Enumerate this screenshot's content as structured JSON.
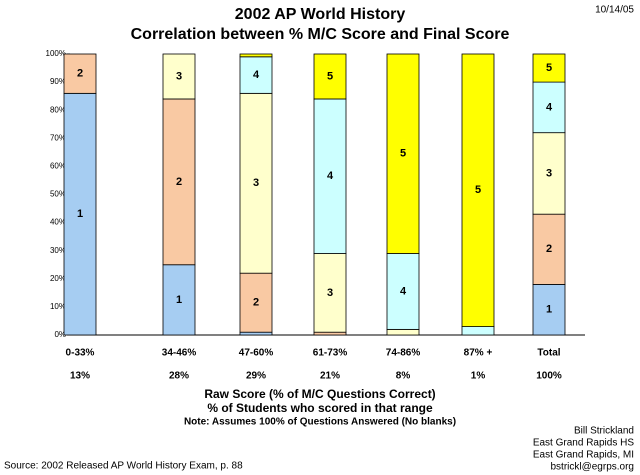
{
  "chart_data": {
    "type": "stacked_bar",
    "title": "2002 AP World History",
    "subtitle": "Correlation between % M/C Score and Final Score",
    "date": "10/14/05",
    "categories": [
      "0-33%",
      "34-46%",
      "47-60%",
      "61-73%",
      "74-86%",
      "87% +",
      "Total"
    ],
    "category_sublabels": [
      "13%",
      "28%",
      "29%",
      "21%",
      "8%",
      "1%",
      "100%"
    ],
    "x_label": "Raw Score (% of M/C Questions Correct)",
    "x_label_2": "% of Students who scored in that range",
    "note": "Note: Assumes 100% of Questions Answered (No blanks)",
    "series": [
      {
        "name": "1",
        "color": "#a6cdf2",
        "values": [
          86,
          25,
          1,
          0,
          0,
          0,
          18
        ]
      },
      {
        "name": "2",
        "color": "#f9c9a3",
        "values": [
          14,
          59,
          21,
          1,
          0,
          0,
          25
        ]
      },
      {
        "name": "3",
        "color": "#ffffcc",
        "values": [
          0,
          16,
          64,
          28,
          2,
          0,
          29
        ]
      },
      {
        "name": "4",
        "color": "#ccffff",
        "values": [
          0,
          0,
          13,
          55,
          27,
          3,
          18
        ]
      },
      {
        "name": "5",
        "color": "#ffff00",
        "values": [
          0,
          0,
          1,
          16,
          71,
          97,
          10
        ]
      }
    ],
    "ylim": [
      0,
      100
    ],
    "yticks": [
      {
        "value": 0,
        "label": "0%"
      },
      {
        "value": 10,
        "label": "10%"
      },
      {
        "value": 20,
        "label": "20%"
      },
      {
        "value": 30,
        "label": "30%"
      },
      {
        "value": 40,
        "label": "40%"
      },
      {
        "value": 50,
        "label": "50%"
      },
      {
        "value": 60,
        "label": "60%"
      },
      {
        "value": 70,
        "label": "70%"
      },
      {
        "value": 80,
        "label": "80%"
      },
      {
        "value": 90,
        "label": "90%"
      },
      {
        "value": 100,
        "label": "100%"
      }
    ],
    "source": "Source: 2002 Released AP World History Exam, p. 88",
    "author": [
      "Bill Strickland",
      "East Grand Rapids HS",
      "East Grand Rapids, MI",
      "bstrickl@egrps.org"
    ]
  }
}
